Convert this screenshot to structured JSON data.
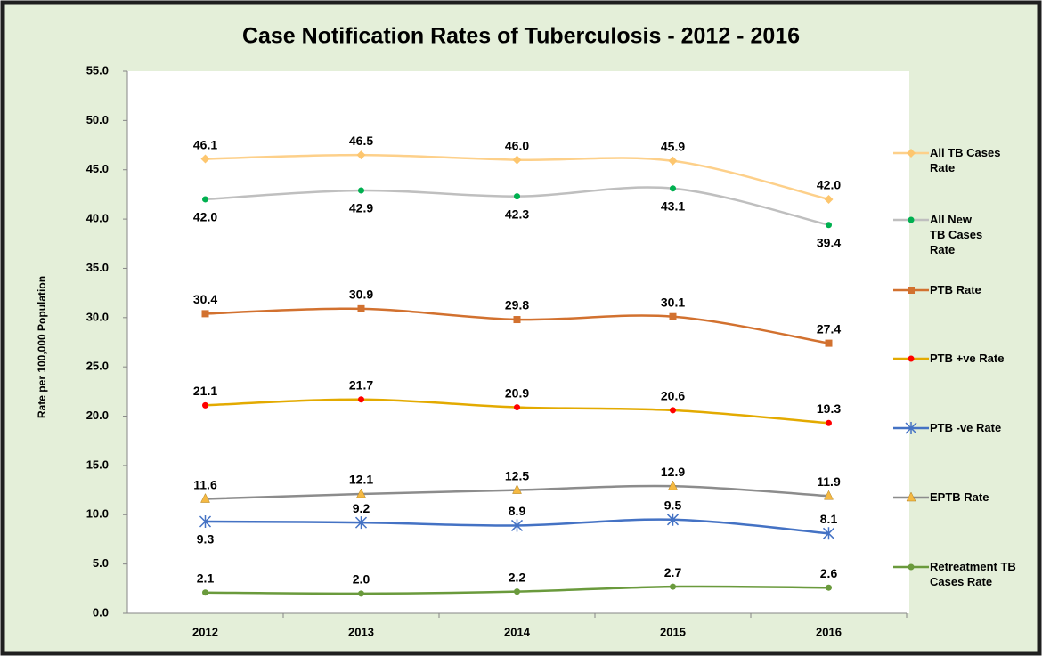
{
  "chart_data": {
    "type": "line",
    "title": "Case Notification Rates of Tuberculosis - 2012 - 2016",
    "y_label": "Rate per 100,000 Population",
    "categories": [
      "2012",
      "2013",
      "2014",
      "2015",
      "2016"
    ],
    "ylim": [
      0,
      55
    ],
    "yticks": [
      {
        "value": 0,
        "label": "0.0"
      },
      {
        "value": 5,
        "label": "5.0"
      },
      {
        "value": 10,
        "label": "10.0"
      },
      {
        "value": 15,
        "label": "15.0"
      },
      {
        "value": 20,
        "label": "20.0"
      },
      {
        "value": 25,
        "label": "25.0"
      },
      {
        "value": 30,
        "label": "30.0"
      },
      {
        "value": 35,
        "label": "35.0"
      },
      {
        "value": 40,
        "label": "40.0"
      },
      {
        "value": 45,
        "label": "45.0"
      },
      {
        "value": 50,
        "label": "50.0"
      },
      {
        "value": 55,
        "label": "55.0"
      }
    ],
    "grid": false,
    "legend": "right",
    "series": [
      {
        "name": "All TB Cases Rate",
        "color": "#fdd08a",
        "marker": "diamond",
        "marker_color": "#fdc66e",
        "values": [
          46.1,
          46.5,
          46.0,
          45.9,
          42.0
        ],
        "value_labels": [
          "46.1",
          "46.5",
          "46.0",
          "45.9",
          "42.0"
        ]
      },
      {
        "name": "All  New TB Cases Rate",
        "color": "#bfbfbf",
        "marker": "circle",
        "marker_color": "#00b050",
        "values": [
          42.0,
          42.9,
          42.3,
          43.1,
          39.4
        ],
        "value_labels": [
          "42.0",
          "42.9",
          "42.3",
          "43.1",
          "39.4"
        ]
      },
      {
        "name": "PTB Rate",
        "color": "#d2712f",
        "marker": "square",
        "marker_color": "#d2712f",
        "values": [
          30.4,
          30.9,
          29.8,
          30.1,
          27.4
        ],
        "value_labels": [
          "30.4",
          "30.9",
          "29.8",
          "30.1",
          "27.4"
        ]
      },
      {
        "name": "PTB +ve Rate",
        "color": "#e3aa00",
        "marker": "circle",
        "marker_color": "#ff0000",
        "values": [
          21.1,
          21.7,
          20.9,
          20.6,
          19.3
        ],
        "value_labels": [
          "21.1",
          "21.7",
          "20.9",
          "20.6",
          "19.3"
        ]
      },
      {
        "name": "PTB -ve Rate",
        "color": "#4472c4",
        "marker": "star",
        "marker_color": "#4472c4",
        "values": [
          9.3,
          9.2,
          8.9,
          9.5,
          8.1
        ],
        "value_labels": [
          "9.3",
          "9.2",
          "8.9",
          "9.5",
          "8.1"
        ]
      },
      {
        "name": "EPTB Rate",
        "color": "#8c8c8c",
        "marker": "triangle",
        "marker_color": "#f5b942",
        "values": [
          11.6,
          12.1,
          12.5,
          12.9,
          11.9
        ],
        "value_labels": [
          "11.6",
          "12.1",
          "12.5",
          "12.9",
          "11.9"
        ]
      },
      {
        "name": "Retreatment TB Cases Rate",
        "color": "#6a9a3c",
        "marker": "circle",
        "marker_color": "#6a9a3c",
        "values": [
          2.1,
          2.0,
          2.2,
          2.7,
          2.6
        ],
        "value_labels": [
          "2.1",
          "2.0",
          "2.2",
          "2.7",
          "2.6"
        ]
      }
    ]
  }
}
